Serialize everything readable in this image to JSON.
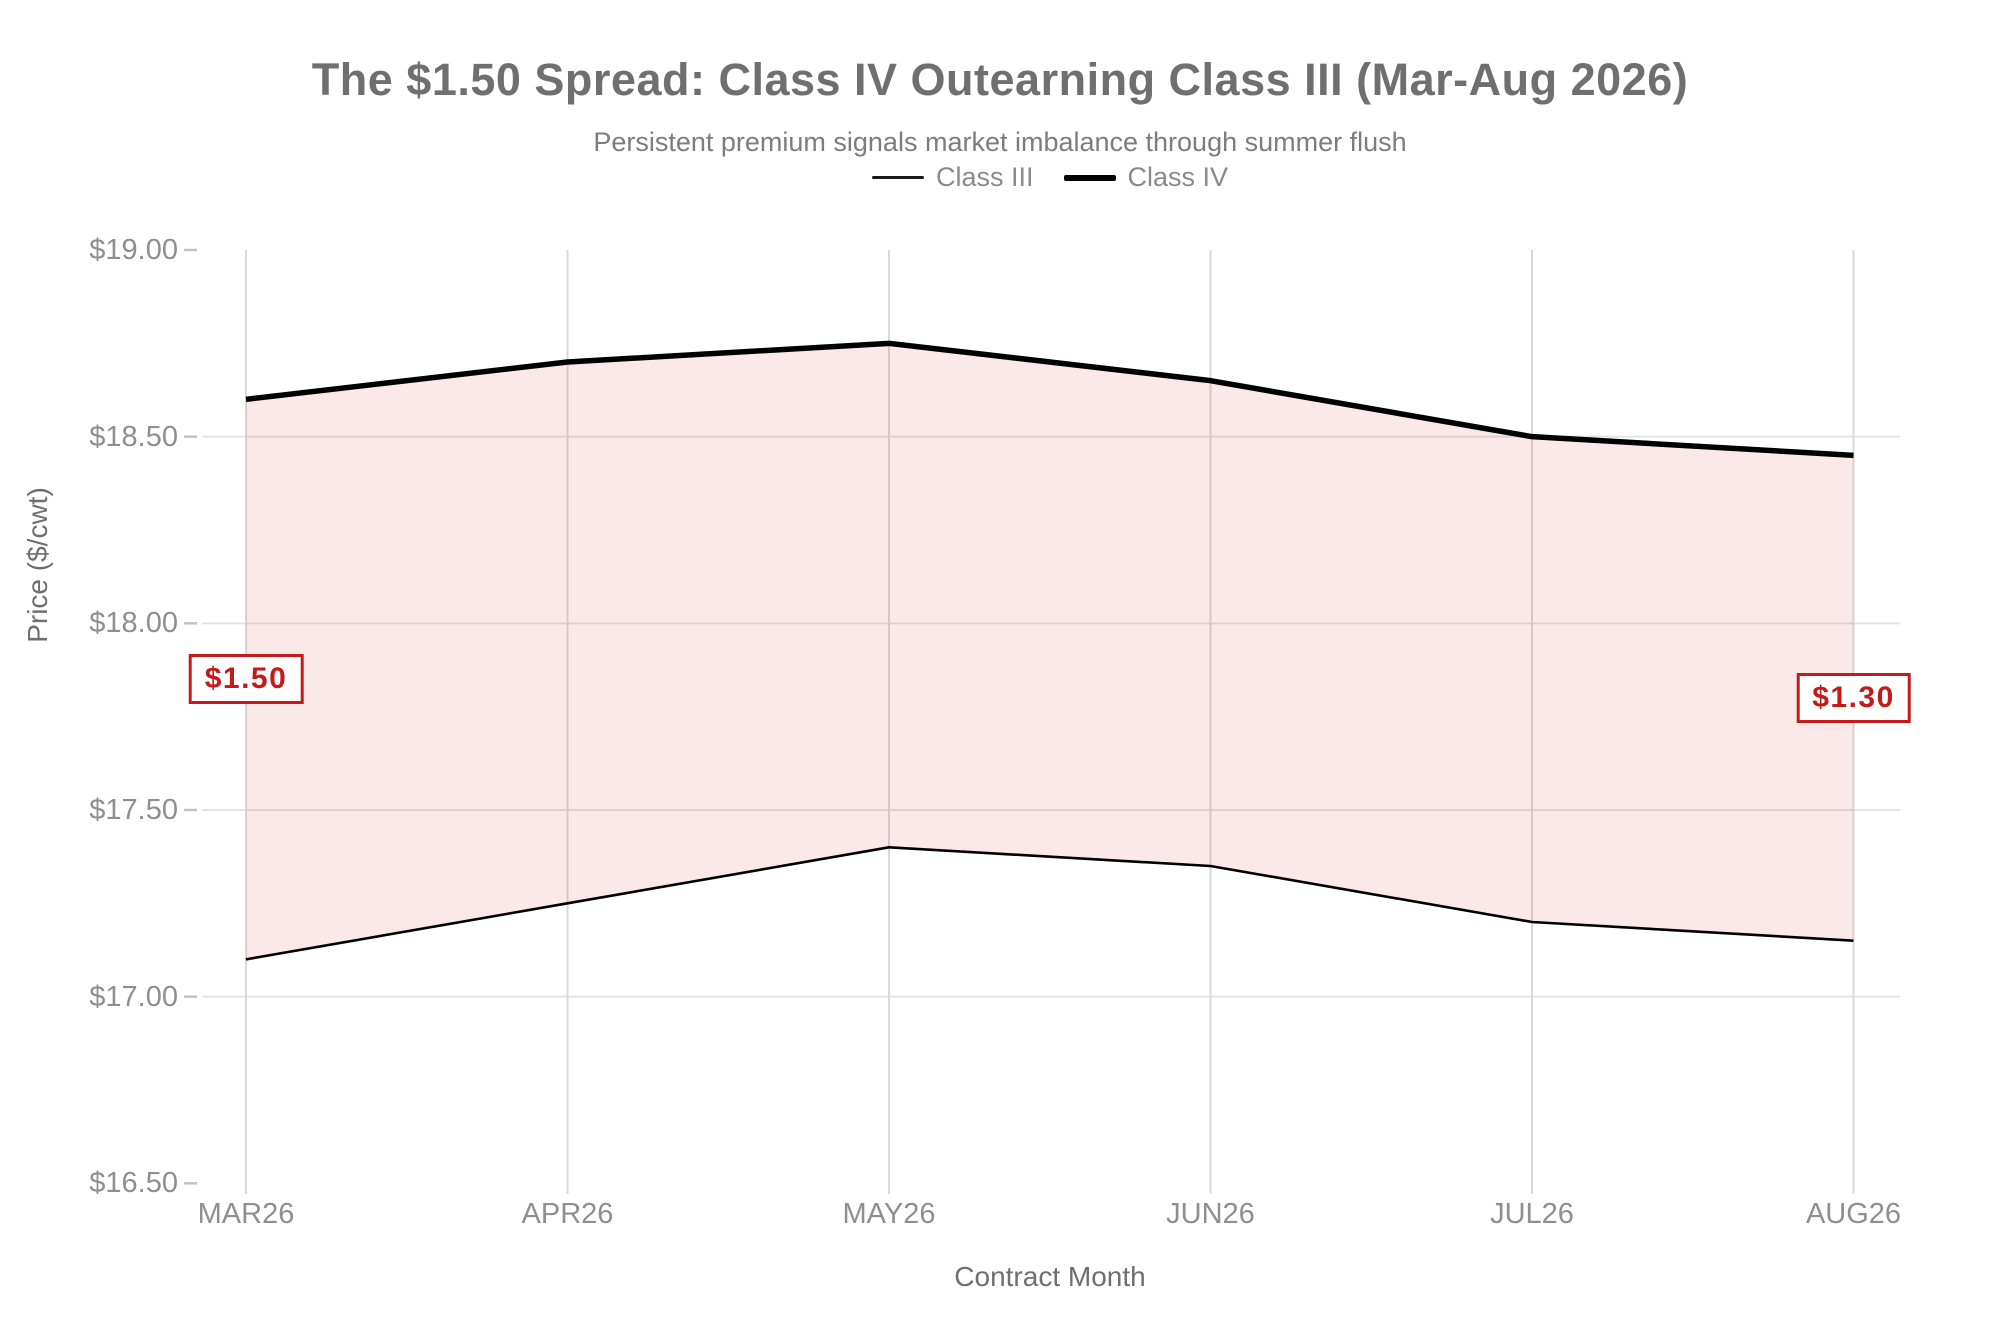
{
  "title": "The $1.50 Spread: Class IV Outearning Class III (Mar-Aug 2026)",
  "subtitle": "Persistent premium signals market imbalance through summer flush",
  "legend": {
    "items": [
      {
        "label": "Class III",
        "swatch": "thin-line"
      },
      {
        "label": "Class IV",
        "swatch": "thick-line"
      }
    ]
  },
  "axes": {
    "x": {
      "title": "Contract Month"
    },
    "y": {
      "title": "Price ($/cwt)",
      "ticks": [
        "$19.00",
        "$18.50",
        "$18.00",
        "$17.50",
        "$17.00",
        "$16.50"
      ]
    }
  },
  "colors": {
    "accent_red": "#c41a1a",
    "band_fill": "rgba(220,38,38,0.10)",
    "class_iii_line": "#000000",
    "class_iv_line": "#000000",
    "grid_horizontal": "#e4e4e4",
    "grid_vertical": "#d9d9d9",
    "tick_dash": "#c2c2c2",
    "text_muted": "#8f8f8f",
    "text_title": "#6f6f6f"
  },
  "chart_data": {
    "type": "area",
    "categories": [
      "MAR26",
      "APR26",
      "MAY26",
      "JUN26",
      "JUL26",
      "AUG26"
    ],
    "series": [
      {
        "name": "Class III",
        "values": [
          17.1,
          17.25,
          17.4,
          17.35,
          17.2,
          17.15
        ]
      },
      {
        "name": "Class IV",
        "values": [
          18.6,
          18.7,
          18.75,
          18.65,
          18.5,
          18.45
        ]
      }
    ],
    "band_fill_between": [
      "Class III",
      "Class IV"
    ],
    "title": "The $1.50 Spread: Class IV Outearning Class III (Mar-Aug 2026)",
    "subtitle": "Persistent premium signals market imbalance through summer flush",
    "xlabel": "Contract Month",
    "ylabel": "Price ($/cwt)",
    "ylim": [
      16.5,
      19.0
    ],
    "ytick_step": 0.5,
    "grid": "horizontal-and-vertical",
    "legend_position": "top-center",
    "annotations": [
      {
        "text": "$1.50",
        "x": "MAR26",
        "y": 17.85
      },
      {
        "text": "$1.30",
        "x": "AUG26",
        "y": 17.8
      }
    ]
  }
}
